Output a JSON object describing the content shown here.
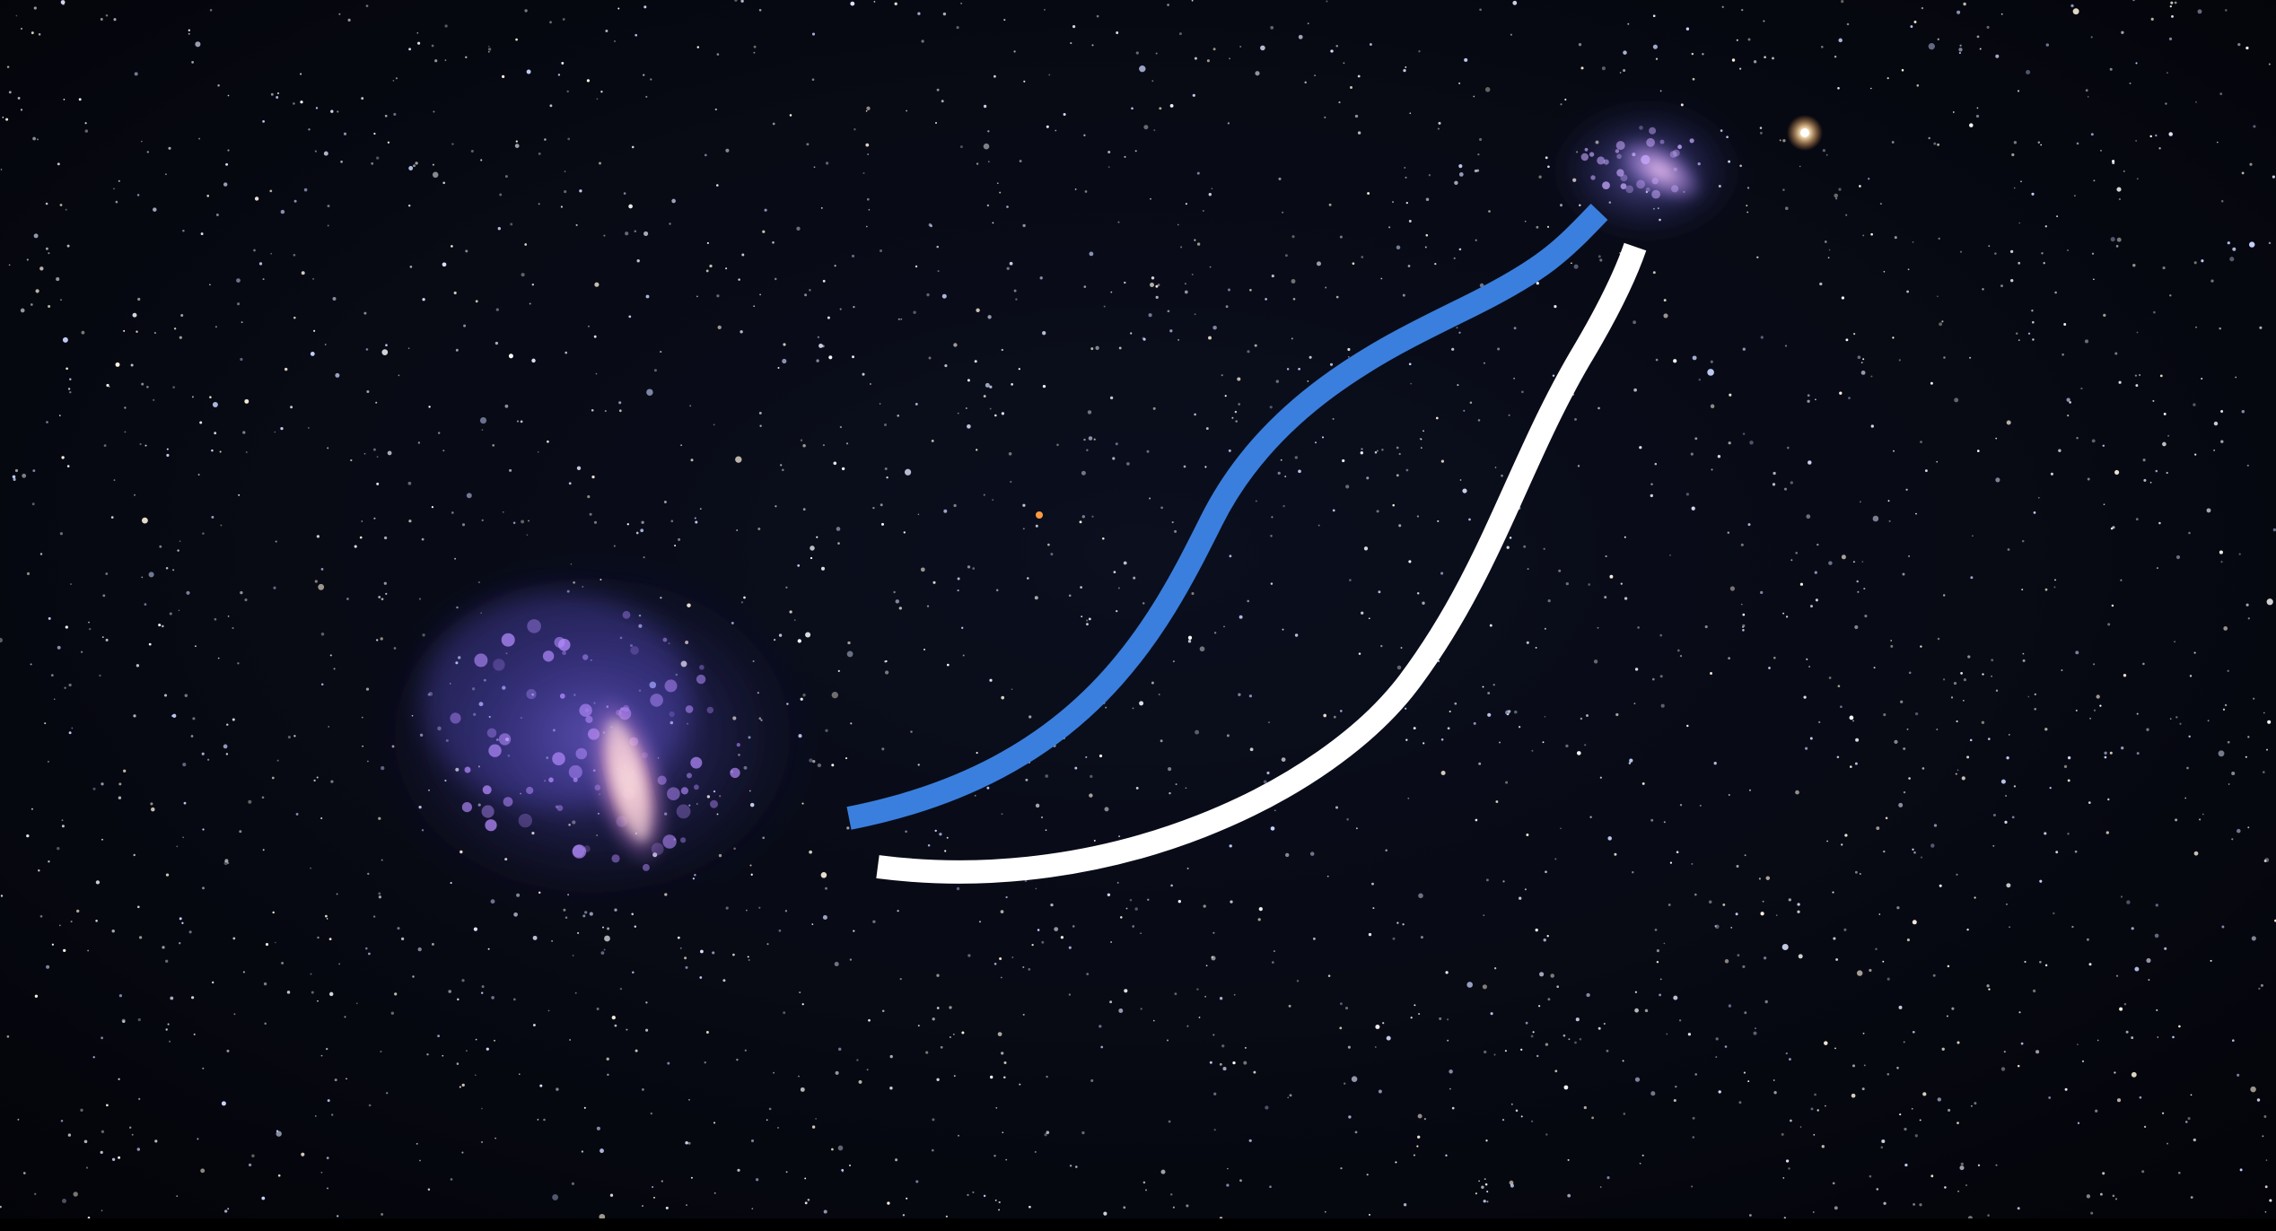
{
  "scene": {
    "background_color": "#05070d",
    "star_colors": [
      "#ffffff",
      "#dfe6ff",
      "#fff4e0",
      "#c9d4ff"
    ],
    "large_cloud": {
      "name": "large-magellanic-cloud",
      "core_color": "#f0b8c8",
      "glow_color": "#7a6cff",
      "knot_color": "#b58cff"
    },
    "small_cloud": {
      "name": "small-magellanic-cloud",
      "core_color": "#e6b2f0",
      "glow_color": "#8d86ff"
    },
    "bright_star_color": "#ffd9a0",
    "orange_star_color": "#ff9a40"
  },
  "streams": {
    "blue_color": "#3a7fde",
    "white_color": "#ffffff"
  }
}
